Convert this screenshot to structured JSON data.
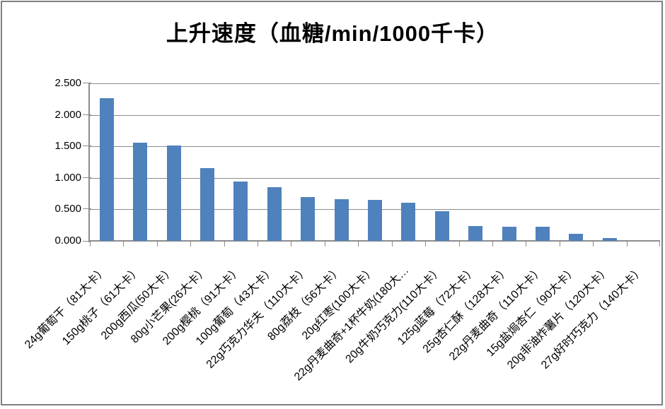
{
  "chart_data": {
    "type": "bar",
    "title": "上升速度（血糖/min/1000千卡）",
    "categories": [
      "24g葡萄干（81大卡）",
      "150g桃子（61大卡）",
      "200g西瓜(50大卡）",
      "80g小芒果(26大卡）",
      "200g樱桃（91大卡）",
      "100g葡萄（43大卡）",
      "22g巧克力华夫（110大卡）",
      "80g荔枝（56大卡）",
      "20g红枣(100大卡）",
      "22g丹麦曲奇+1杯牛奶(180大…",
      "20g牛奶巧克力(110大卡）",
      "125g蓝莓（72大卡）",
      "25g杏仁酥（128大卡）",
      "22g丹麦曲奇（110大卡）",
      "15g盐焗杏仁（90大卡）",
      "20g非油炸薯片（120大卡）",
      "27g好时巧克力（140大卡）"
    ],
    "values": [
      2.27,
      1.56,
      1.51,
      1.15,
      0.94,
      0.85,
      0.7,
      0.66,
      0.65,
      0.61,
      0.47,
      0.24,
      0.22,
      0.22,
      0.11,
      0.04,
      0.0
    ],
    "xlabel": "",
    "ylabel": "",
    "ylim": [
      0,
      2.5
    ],
    "ytick_step": 0.5,
    "ytick_labels": [
      "0.000",
      "0.500",
      "1.000",
      "1.500",
      "2.000",
      "2.500"
    ],
    "grid": true,
    "legend": "none",
    "label_rotation_deg": 45,
    "colors": {
      "bar": "#4F81BD",
      "axis": "#8C8C8C",
      "gridline": "#8C8C8C",
      "frame_border": "#808080",
      "text": "#000000",
      "background": "#FFFFFF"
    }
  }
}
